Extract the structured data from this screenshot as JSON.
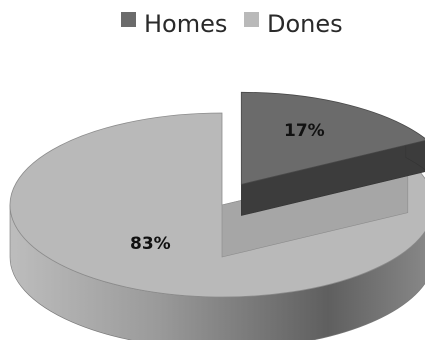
{
  "chart_data": {
    "type": "pie",
    "title": "",
    "style": "3d-exploded",
    "legend_position": "top",
    "slices": [
      {
        "name": "Homes",
        "value": 17,
        "label": "17%",
        "color": "#6b6b6b",
        "exploded": true
      },
      {
        "name": "Dones",
        "value": 83,
        "label": "83%",
        "color": "#b9b9b9",
        "exploded": false
      }
    ]
  }
}
